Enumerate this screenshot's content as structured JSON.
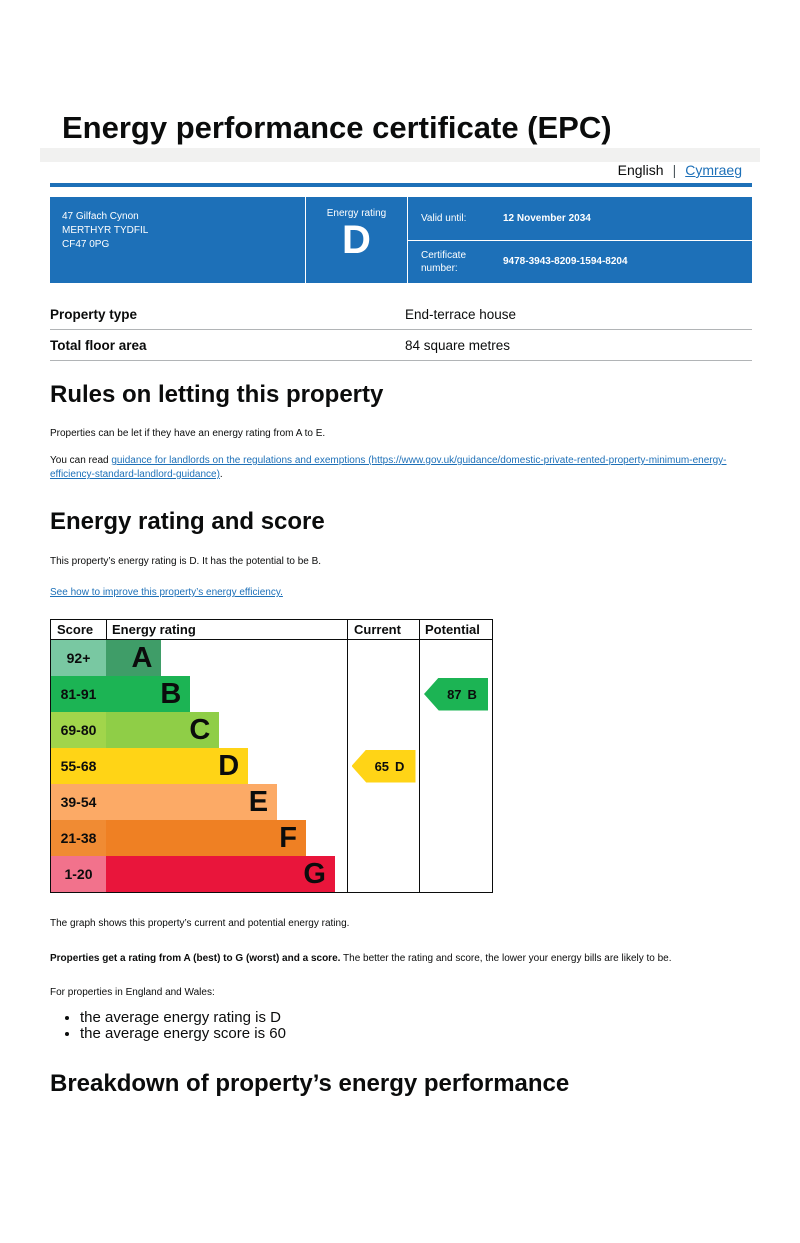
{
  "colors": {
    "accent": "#1d70b8",
    "link": "#1d70b8",
    "text": "#0b0c0c",
    "topbar": "#f1f1f0",
    "row_border": "#b1b4b6"
  },
  "header": {
    "english": "English",
    "separator": "|",
    "cymraeg": "Cymraeg"
  },
  "title": "Energy performance certificate (EPC)",
  "summary": {
    "address": [
      "47 Gilfach Cynon",
      "MERTHYR TYDFIL",
      "CF47 0PG"
    ],
    "rating_label": "Energy rating",
    "rating": "D",
    "valid_until_label": "Valid until:",
    "valid_until": "12 November 2034",
    "certificate_label": "Certificate number:",
    "certificate": "9478-3943-8209-1594-8204"
  },
  "details": {
    "rows": [
      {
        "label": "Property type",
        "value": "End-terrace house"
      },
      {
        "label": "Total floor area",
        "value": "84 square metres"
      }
    ]
  },
  "rules": {
    "heading": "Rules on letting this property",
    "p1": "Properties can be let if they have an energy rating from A to E.",
    "p2_prefix": "You can read ",
    "p2_link": "guidance for landlords on the regulations and exemptions (https://www.gov.uk/guidance/domestic-private-rented-property-minimum-energy-efficiency-standard-landlord-guidance)",
    "p2_suffix": "."
  },
  "rating_section": {
    "heading": "Energy rating and score",
    "intro": "This property’s energy rating is D. It has the potential to be B.",
    "improve_link": "See how to improve this property’s energy efficiency."
  },
  "chart_data": {
    "type": "epc-band-chart",
    "columns": [
      "Score",
      "Energy rating",
      "Current",
      "Potential"
    ],
    "bands": [
      {
        "score": "92+",
        "letter": "A",
        "cell_color": "#79c8a2",
        "bar_color": "#3f9d68",
        "width_pct": 23
      },
      {
        "score": "81-91",
        "letter": "B",
        "cell_color": "#1cb454",
        "bar_color": "#1cb454",
        "width_pct": 35
      },
      {
        "score": "69-80",
        "letter": "C",
        "cell_color": "#a1d54b",
        "bar_color": "#8fce47",
        "width_pct": 47
      },
      {
        "score": "55-68",
        "letter": "D",
        "cell_color": "#ffd416",
        "bar_color": "#ffd416",
        "width_pct": 59
      },
      {
        "score": "39-54",
        "letter": "E",
        "cell_color": "#fcaa66",
        "bar_color": "#fcaa66",
        "width_pct": 71
      },
      {
        "score": "21-38",
        "letter": "F",
        "cell_color": "#f08b33",
        "bar_color": "#ef8023",
        "width_pct": 83
      },
      {
        "score": "1-20",
        "letter": "G",
        "cell_color": "#f2728c",
        "bar_color": "#e9153b",
        "width_pct": 95
      }
    ],
    "current": {
      "value": 65,
      "letter": "D",
      "color": "#ffd416",
      "row_index": 3
    },
    "potential": {
      "value": 87,
      "letter": "B",
      "color": "#1cb454",
      "row_index": 1
    }
  },
  "explanation": {
    "p1": "The graph shows this property’s current and potential energy rating.",
    "p2_bold": "Properties get a rating from A (best) to G (worst) and a score.",
    "p2_rest": " The better the rating and score, the lower your energy bills are likely to be.",
    "p3": "For properties in England and Wales:",
    "bullets": [
      "the average energy rating is D",
      "the average energy score is 60"
    ]
  },
  "breakdown_heading": "Breakdown of property’s energy performance"
}
